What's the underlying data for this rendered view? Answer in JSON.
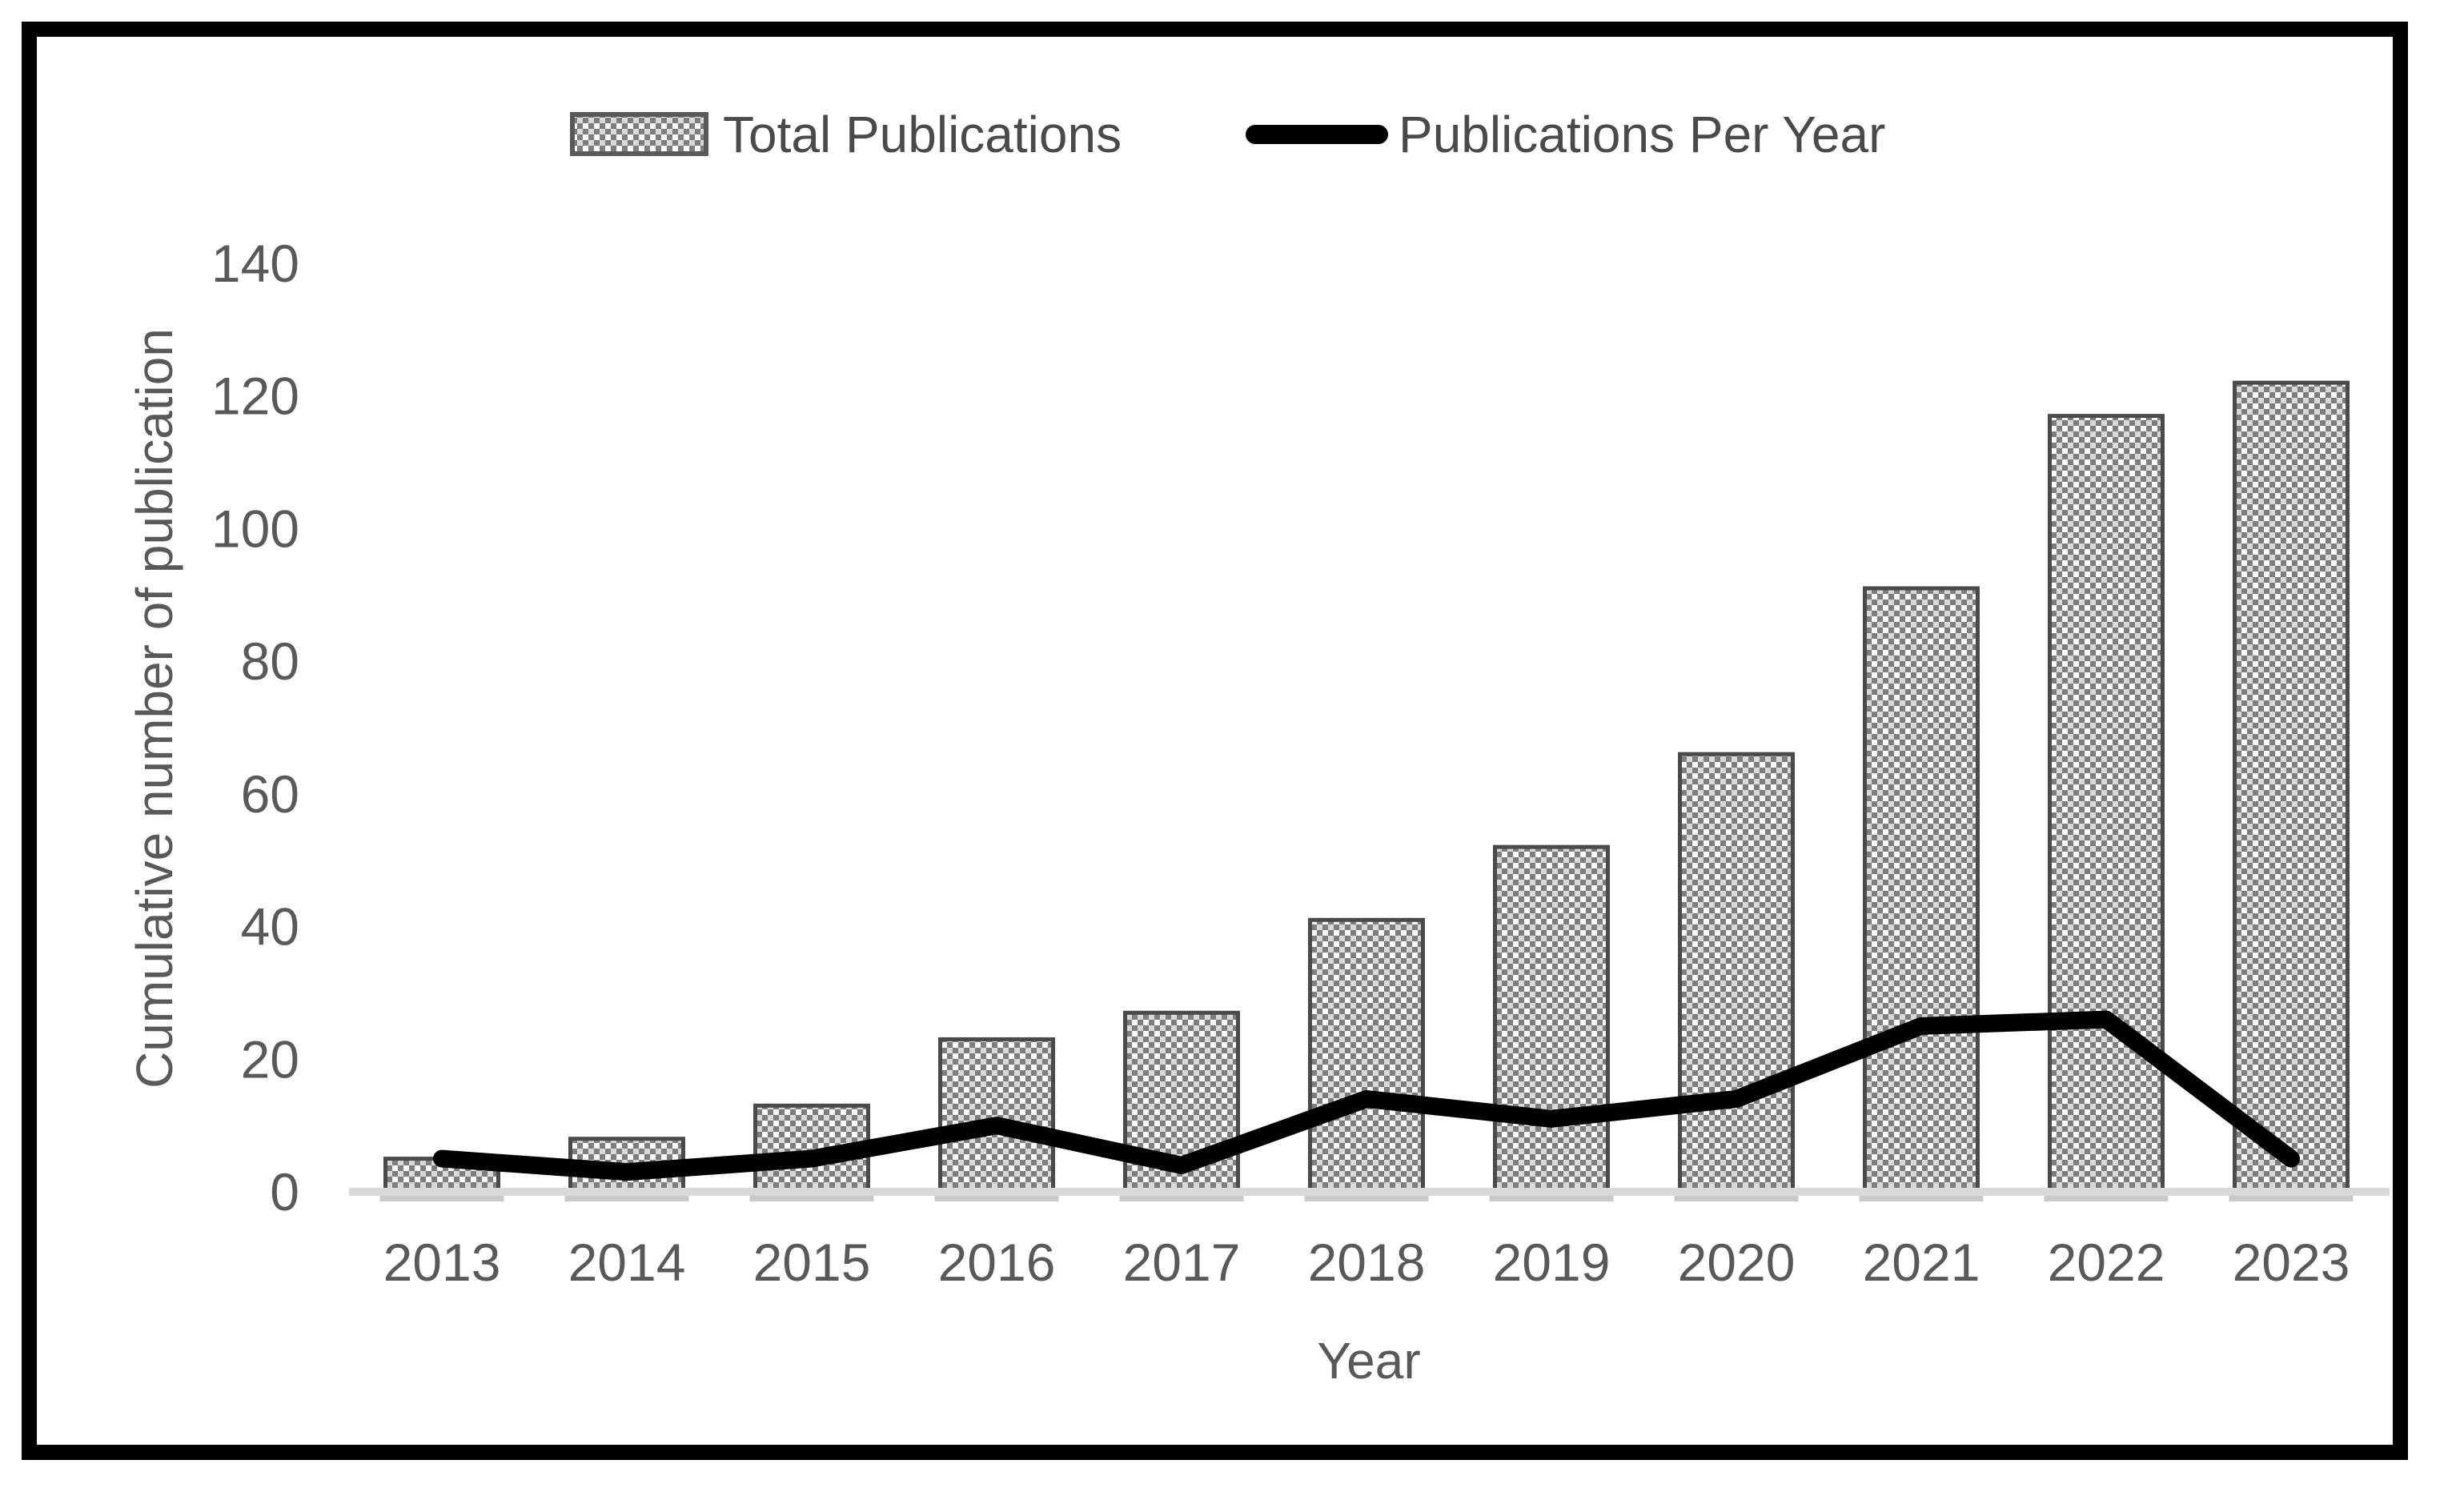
{
  "chart_data": {
    "type": "bar+line",
    "title": "",
    "categories": [
      "2013",
      "2014",
      "2015",
      "2016",
      "2017",
      "2018",
      "2019",
      "2020",
      "2021",
      "2022",
      "2023"
    ],
    "series": [
      {
        "name": "Total Publications",
        "type": "bar",
        "values": [
          5,
          8,
          13,
          23,
          27,
          41,
          52,
          66,
          91,
          117,
          122
        ]
      },
      {
        "name": "Publications Per Year",
        "type": "line",
        "values": [
          5,
          3,
          5,
          10,
          4,
          14,
          11,
          14,
          25,
          26,
          5
        ]
      }
    ],
    "xlabel": "Year",
    "ylabel": "Cumulative number of publication",
    "ylim": [
      0,
      140
    ],
    "y_ticks": [
      0,
      20,
      40,
      60,
      80,
      100,
      120,
      140
    ],
    "grid": false,
    "legend_position": "top-center"
  },
  "legend": {
    "items": [
      {
        "label": "Total Publications",
        "swatch": "patterned-bar-swatch"
      },
      {
        "label": "Publications Per Year",
        "swatch": "black-line-swatch"
      }
    ]
  },
  "colors": {
    "background": "#ffffff",
    "frame_border": "#000000",
    "bar_fill_base": "#7e7e7e",
    "bar_pattern_dot_white": "#ffffff",
    "bar_pattern_dot_light": "#d9d9d9",
    "bar_border": "#4a4a4a",
    "line": "#000000",
    "axis_line": "#d9d9d9",
    "bar_shadow": "#c9c9c9",
    "tick_label": "#595959",
    "axis_title": "#595959",
    "legend_text": "#4a4a4a"
  }
}
